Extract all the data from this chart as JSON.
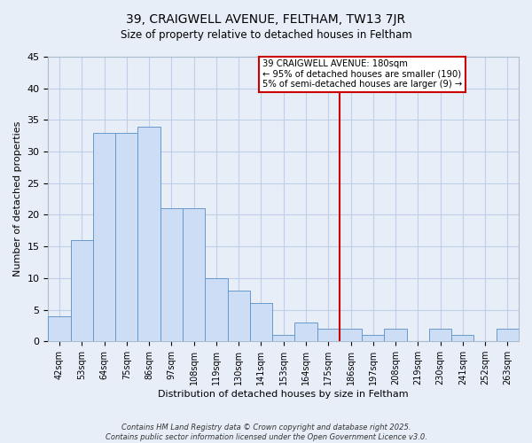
{
  "title": "39, CRAIGWELL AVENUE, FELTHAM, TW13 7JR",
  "subtitle": "Size of property relative to detached houses in Feltham",
  "xlabel": "Distribution of detached houses by size in Feltham",
  "ylabel": "Number of detached properties",
  "bar_labels": [
    "42sqm",
    "53sqm",
    "64sqm",
    "75sqm",
    "86sqm",
    "97sqm",
    "108sqm",
    "119sqm",
    "130sqm",
    "141sqm",
    "153sqm",
    "164sqm",
    "175sqm",
    "186sqm",
    "197sqm",
    "208sqm",
    "219sqm",
    "230sqm",
    "241sqm",
    "252sqm",
    "263sqm"
  ],
  "bar_values": [
    4,
    16,
    33,
    33,
    34,
    21,
    21,
    10,
    8,
    6,
    1,
    3,
    2,
    2,
    1,
    2,
    0,
    2,
    1,
    0,
    2
  ],
  "bar_color": "#ccddf5",
  "bar_edge_color": "#6699cc",
  "grid_color": "#c0cfe8",
  "background_color": "#e8eef8",
  "vline_x": 13.0,
  "vline_color": "#cc0000",
  "annotation_title": "39 CRAIGWELL AVENUE: 180sqm",
  "annotation_line1": "← 95% of detached houses are smaller (190)",
  "annotation_line2": "5% of semi-detached houses are larger (9) →",
  "ylim": [
    0,
    45
  ],
  "yticks": [
    0,
    5,
    10,
    15,
    20,
    25,
    30,
    35,
    40,
    45
  ],
  "footnote1": "Contains HM Land Registry data © Crown copyright and database right 2025.",
  "footnote2": "Contains public sector information licensed under the Open Government Licence v3.0."
}
